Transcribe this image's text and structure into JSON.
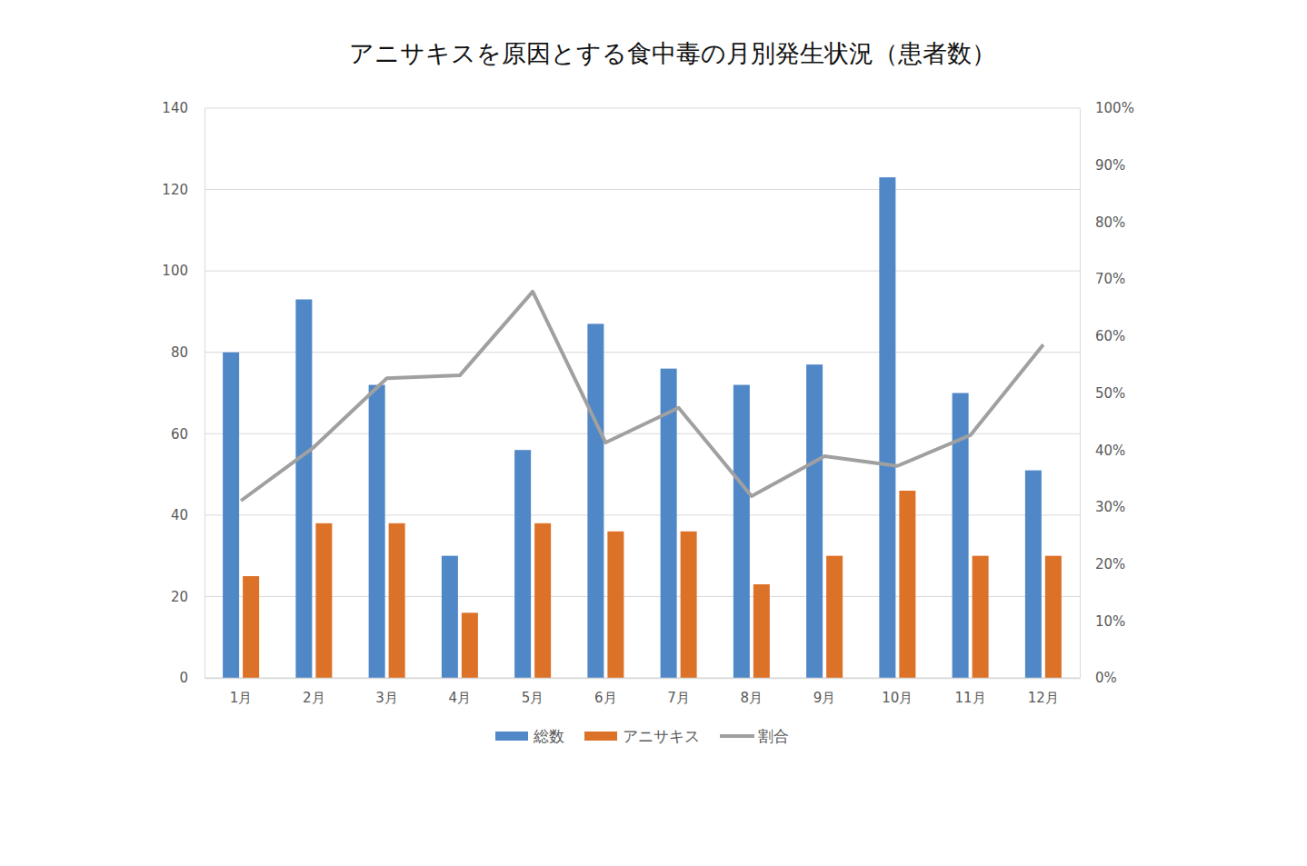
{
  "chart_data": {
    "type": "bar",
    "title": "アニサキスを原因とする食中毒の月別発生状況（患者数）",
    "categories": [
      "1月",
      "2月",
      "3月",
      "4月",
      "5月",
      "6月",
      "7月",
      "8月",
      "9月",
      "10月",
      "11月",
      "12月"
    ],
    "series": [
      {
        "name": "総数",
        "type": "bar",
        "color": "#4f87c7",
        "values": [
          80,
          93,
          72,
          30,
          56,
          87,
          76,
          72,
          77,
          123,
          70,
          51
        ]
      },
      {
        "name": "アニサキス",
        "type": "bar",
        "color": "#dc7228",
        "values": [
          25,
          38,
          38,
          16,
          38,
          36,
          36,
          23,
          30,
          46,
          30,
          30
        ]
      },
      {
        "name": "割合",
        "type": "line",
        "color": "#a0a0a0",
        "axis": "y2",
        "marker": "none",
        "line_style": "solid",
        "values": [
          31.1,
          40.5,
          52.6,
          53.1,
          67.8,
          41.3,
          47.4,
          31.9,
          38.9,
          37.2,
          42.6,
          58.5
        ]
      }
    ],
    "ylim": [
      0,
      140
    ],
    "yticks": [
      0,
      20,
      40,
      60,
      80,
      100,
      120,
      140
    ],
    "y2lim": [
      0,
      100
    ],
    "y2ticks": [
      {
        "value": 0,
        "label": "0%"
      },
      {
        "value": 10,
        "label": "10%"
      },
      {
        "value": 20,
        "label": "20%"
      },
      {
        "value": 30,
        "label": "30%"
      },
      {
        "value": 40,
        "label": "40%"
      },
      {
        "value": 50,
        "label": "50%"
      },
      {
        "value": 60,
        "label": "60%"
      },
      {
        "value": 70,
        "label": "70%"
      },
      {
        "value": 80,
        "label": "80%"
      },
      {
        "value": 90,
        "label": "90%"
      },
      {
        "value": 100,
        "label": "100%"
      }
    ],
    "grid": true,
    "legend": "bottom"
  }
}
